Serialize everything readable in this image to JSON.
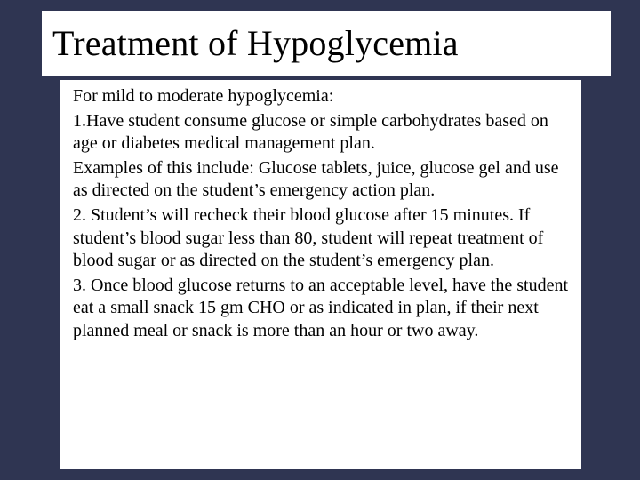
{
  "background_color": "#2f3552",
  "box_background": "#ffffff",
  "text_color": "#000000",
  "font_family": "Palatino Linotype, Book Antiqua, Palatino, Georgia, serif",
  "title_fontsize": 40,
  "body_fontsize": 20,
  "title": "Treatment of Hypoglycemia",
  "paragraphs": [
    "For mild to moderate hypoglycemia:",
    "1.Have student consume glucose or simple carbohydrates based on age or diabetes medical management plan.",
    "Examples of this include: Glucose tablets, juice, glucose gel and use as directed on the student’s emergency action plan.",
    "2. Student’s will recheck their blood glucose after 15 minutes. If student’s  blood sugar less than 80, student will repeat treatment of blood sugar or as directed on the student’s emergency plan.",
    "3. Once blood glucose returns to an acceptable level, have the student eat a small snack 15 gm CHO or as indicated in plan, if their next planned meal or snack is more than an hour or two away."
  ]
}
